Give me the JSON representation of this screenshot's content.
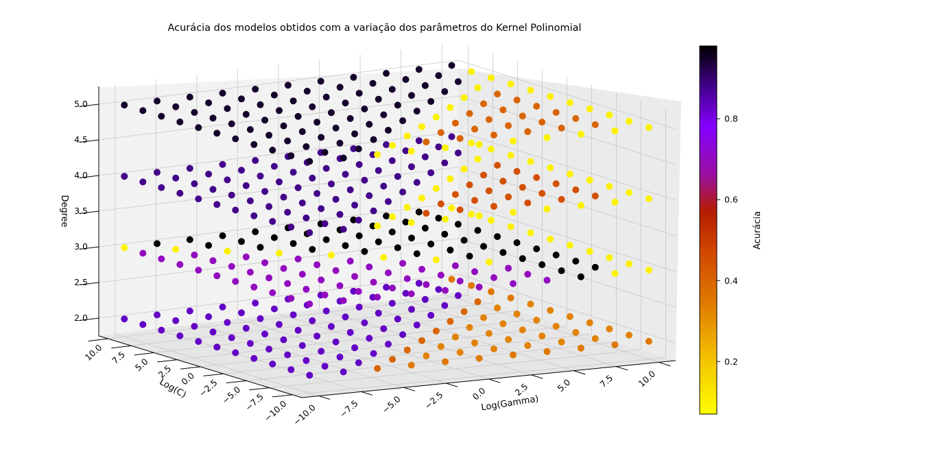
{
  "chart_data": {
    "type": "scatter3d",
    "title": "Acurácia dos modelos obtidos com a variação dos parâmetros do Kernel Polinomial",
    "xlabel": "Log(Gamma)",
    "ylabel": "Log(C)",
    "zlabel": "Degree",
    "colorbar_label": "Acurácia",
    "colormap": "gnuplot (black → purple → red → orange → yellow)",
    "colorbar_ticks": [
      "0.2",
      "0.4",
      "0.6",
      "0.8"
    ],
    "colorbar_range": [
      0.07,
      0.98
    ],
    "x_ticks": [
      "−10.0",
      "−7.5",
      "−5.0",
      "−2.5",
      "0.0",
      "2.5",
      "5.0",
      "7.5",
      "10.0"
    ],
    "y_ticks": [
      "−10.0",
      "−7.5",
      "−5.0",
      "−2.5",
      "0.0",
      "2.5",
      "5.0",
      "7.5",
      "10.0"
    ],
    "z_ticks": [
      "2.0",
      "2.5",
      "3.0",
      "3.5",
      "4.0",
      "4.5",
      "5.0"
    ],
    "xlim": [
      -11,
      11
    ],
    "ylim": [
      -11,
      11
    ],
    "zlim": [
      1.75,
      5.25
    ],
    "grid": true,
    "gamma_values": [
      -10,
      -8,
      -6,
      -4,
      -2,
      0,
      2,
      4,
      6,
      8,
      10
    ],
    "c_values": [
      -10,
      -8,
      -6,
      -4,
      -2,
      0,
      2,
      4,
      6,
      8,
      10
    ],
    "degree_values": [
      2,
      3,
      4,
      5
    ],
    "accuracy_grid_note": "accuracy[degree][C index][Gamma index]",
    "accuracy": {
      "2": [
        [
          0.83,
          0.83,
          0.4,
          0.35,
          0.35,
          0.35,
          0.35,
          0.35,
          0.35,
          0.35,
          0.35
        ],
        [
          0.83,
          0.83,
          0.83,
          0.4,
          0.33,
          0.33,
          0.33,
          0.33,
          0.33,
          0.33,
          0.33
        ],
        [
          0.83,
          0.83,
          0.83,
          0.83,
          0.4,
          0.33,
          0.33,
          0.33,
          0.33,
          0.33,
          0.33
        ],
        [
          0.83,
          0.83,
          0.83,
          0.83,
          0.83,
          0.4,
          0.33,
          0.33,
          0.33,
          0.33,
          0.33
        ],
        [
          0.83,
          0.83,
          0.83,
          0.83,
          0.83,
          0.83,
          0.4,
          0.33,
          0.33,
          0.33,
          0.33
        ],
        [
          0.83,
          0.83,
          0.83,
          0.83,
          0.83,
          0.83,
          0.83,
          0.4,
          0.33,
          0.33,
          0.33
        ],
        [
          0.83,
          0.83,
          0.83,
          0.83,
          0.83,
          0.83,
          0.83,
          0.83,
          0.4,
          0.33,
          0.33
        ],
        [
          0.83,
          0.83,
          0.83,
          0.83,
          0.83,
          0.83,
          0.83,
          0.83,
          0.83,
          0.4,
          0.35
        ],
        [
          0.83,
          0.83,
          0.83,
          0.83,
          0.83,
          0.83,
          0.83,
          0.83,
          0.83,
          0.83,
          0.35
        ],
        [
          0.83,
          0.83,
          0.83,
          0.83,
          0.83,
          0.83,
          0.83,
          0.83,
          0.83,
          0.83,
          0.35
        ],
        [
          0.83,
          0.83,
          0.83,
          0.83,
          0.83,
          0.83,
          0.83,
          0.83,
          0.83,
          0.83,
          0.35
        ]
      ],
      "3": [
        [
          0.7,
          0.7,
          0.7,
          0.7,
          0.7,
          0.7,
          0.7,
          0.7,
          0.98,
          0.1,
          0.1
        ],
        [
          0.7,
          0.7,
          0.7,
          0.7,
          0.7,
          0.7,
          0.7,
          0.7,
          0.98,
          0.98,
          0.1
        ],
        [
          0.7,
          0.7,
          0.7,
          0.7,
          0.7,
          0.7,
          0.7,
          0.7,
          0.98,
          0.98,
          0.1
        ],
        [
          0.7,
          0.7,
          0.7,
          0.7,
          0.7,
          0.7,
          0.7,
          0.1,
          0.98,
          0.98,
          0.1
        ],
        [
          0.7,
          0.7,
          0.7,
          0.7,
          0.7,
          0.7,
          0.1,
          0.98,
          0.98,
          0.98,
          0.1
        ],
        [
          0.7,
          0.7,
          0.7,
          0.7,
          0.7,
          0.1,
          0.98,
          0.98,
          0.98,
          0.98,
          0.1
        ],
        [
          0.7,
          0.7,
          0.7,
          0.7,
          0.1,
          0.98,
          0.98,
          0.98,
          0.98,
          0.98,
          0.1
        ],
        [
          0.7,
          0.7,
          0.7,
          0.1,
          0.98,
          0.98,
          0.98,
          0.98,
          0.98,
          0.98,
          0.1
        ],
        [
          0.7,
          0.7,
          0.1,
          0.98,
          0.98,
          0.98,
          0.98,
          0.98,
          0.98,
          0.98,
          0.1
        ],
        [
          0.7,
          0.1,
          0.98,
          0.98,
          0.98,
          0.98,
          0.98,
          0.98,
          0.98,
          0.98,
          0.1
        ],
        [
          0.1,
          0.98,
          0.98,
          0.98,
          0.98,
          0.98,
          0.98,
          0.98,
          0.98,
          0.98,
          0.1
        ]
      ],
      "4": [
        [
          0.88,
          0.88,
          0.1,
          0.1,
          0.1,
          0.1,
          0.1,
          0.1,
          0.1,
          0.1,
          0.1
        ],
        [
          0.88,
          0.88,
          0.88,
          0.1,
          0.45,
          0.45,
          0.45,
          0.45,
          0.45,
          0.45,
          0.1
        ],
        [
          0.88,
          0.88,
          0.88,
          0.88,
          0.1,
          0.45,
          0.45,
          0.45,
          0.45,
          0.45,
          0.1
        ],
        [
          0.88,
          0.88,
          0.88,
          0.88,
          0.88,
          0.1,
          0.45,
          0.45,
          0.45,
          0.45,
          0.1
        ],
        [
          0.88,
          0.88,
          0.88,
          0.88,
          0.88,
          0.88,
          0.1,
          0.45,
          0.45,
          0.45,
          0.1
        ],
        [
          0.88,
          0.88,
          0.88,
          0.88,
          0.88,
          0.88,
          0.88,
          0.1,
          0.45,
          0.45,
          0.1
        ],
        [
          0.88,
          0.88,
          0.88,
          0.88,
          0.88,
          0.88,
          0.88,
          0.88,
          0.1,
          0.45,
          0.1
        ],
        [
          0.88,
          0.88,
          0.88,
          0.88,
          0.88,
          0.88,
          0.88,
          0.88,
          0.88,
          0.1,
          0.1
        ],
        [
          0.88,
          0.88,
          0.88,
          0.88,
          0.88,
          0.88,
          0.88,
          0.88,
          0.88,
          0.88,
          0.1
        ],
        [
          0.88,
          0.88,
          0.88,
          0.88,
          0.88,
          0.88,
          0.88,
          0.88,
          0.88,
          0.88,
          0.1
        ],
        [
          0.88,
          0.88,
          0.88,
          0.88,
          0.88,
          0.88,
          0.88,
          0.88,
          0.88,
          0.88,
          0.88
        ]
      ],
      "5": [
        [
          0.95,
          0.95,
          0.1,
          0.1,
          0.1,
          0.1,
          0.1,
          0.1,
          0.1,
          0.1,
          0.1
        ],
        [
          0.95,
          0.95,
          0.95,
          0.1,
          0.4,
          0.4,
          0.4,
          0.4,
          0.4,
          0.4,
          0.1
        ],
        [
          0.95,
          0.95,
          0.95,
          0.95,
          0.1,
          0.4,
          0.4,
          0.4,
          0.4,
          0.4,
          0.1
        ],
        [
          0.95,
          0.95,
          0.95,
          0.95,
          0.95,
          0.1,
          0.4,
          0.4,
          0.4,
          0.4,
          0.1
        ],
        [
          0.95,
          0.95,
          0.95,
          0.95,
          0.95,
          0.95,
          0.1,
          0.4,
          0.4,
          0.4,
          0.1
        ],
        [
          0.95,
          0.95,
          0.95,
          0.95,
          0.95,
          0.95,
          0.95,
          0.1,
          0.4,
          0.4,
          0.1
        ],
        [
          0.95,
          0.95,
          0.95,
          0.95,
          0.95,
          0.95,
          0.95,
          0.95,
          0.1,
          0.4,
          0.1
        ],
        [
          0.95,
          0.95,
          0.95,
          0.95,
          0.95,
          0.95,
          0.95,
          0.95,
          0.95,
          0.1,
          0.1
        ],
        [
          0.95,
          0.95,
          0.95,
          0.95,
          0.95,
          0.95,
          0.95,
          0.95,
          0.95,
          0.95,
          0.1
        ],
        [
          0.95,
          0.95,
          0.95,
          0.95,
          0.95,
          0.95,
          0.95,
          0.95,
          0.95,
          0.95,
          0.1
        ],
        [
          0.95,
          0.95,
          0.95,
          0.95,
          0.95,
          0.95,
          0.95,
          0.95,
          0.95,
          0.95,
          0.95
        ]
      ]
    }
  }
}
